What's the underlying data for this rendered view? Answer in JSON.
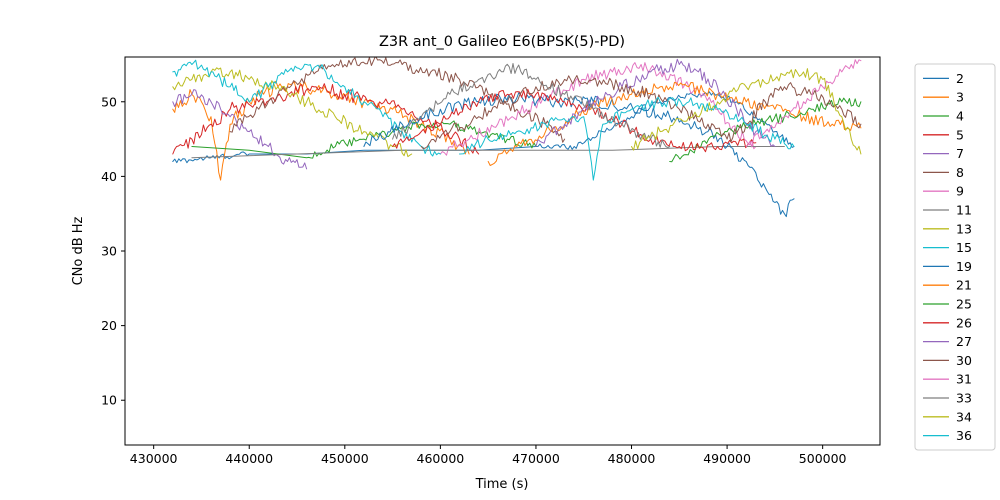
{
  "chart_data": {
    "type": "line",
    "title": "Z3R ant_0 Galileo E6(BPSK(5)-PD)",
    "xlabel": "Time (s)",
    "ylabel": "CNo dB Hz",
    "xlim": [
      427000,
      506000
    ],
    "ylim": [
      4,
      56
    ],
    "xticks": [
      430000,
      440000,
      450000,
      460000,
      470000,
      480000,
      490000,
      500000
    ],
    "yticks": [
      10,
      20,
      30,
      40,
      50
    ],
    "grid": false,
    "legend_position": "right-outside",
    "series": [
      {
        "name": "2",
        "color": "#1f77b4",
        "noise": 0.4,
        "points": [
          [
            432000,
            42
          ],
          [
            436000,
            42.5
          ],
          [
            440000,
            43
          ],
          [
            446000,
            43
          ],
          [
            452000,
            43.5
          ],
          [
            458000,
            43.5
          ],
          [
            464000,
            43.5
          ],
          [
            470000,
            44
          ],
          [
            474000,
            44
          ],
          [
            477000,
            46
          ],
          [
            480000,
            48
          ],
          [
            483000,
            50
          ],
          [
            486000,
            51
          ],
          [
            489000,
            51
          ],
          [
            491000,
            50
          ],
          [
            493000,
            48
          ],
          [
            495000,
            46
          ],
          [
            497000,
            44
          ]
        ]
      },
      {
        "name": "3",
        "color": "#ff7f0e",
        "noise": 0.9,
        "points": [
          [
            432000,
            49
          ],
          [
            434000,
            51
          ],
          [
            436000,
            48
          ],
          [
            437000,
            39.5
          ],
          [
            438000,
            47
          ],
          [
            440000,
            50
          ],
          [
            443000,
            52
          ],
          [
            446000,
            52
          ],
          [
            449000,
            51
          ],
          [
            452000,
            50
          ],
          [
            455000,
            49
          ],
          [
            458000,
            47
          ],
          [
            461000,
            45
          ],
          [
            463000,
            43
          ]
        ]
      },
      {
        "name": "4",
        "color": "#2ca02c",
        "noise": 0.6,
        "points": [
          [
            434000,
            44
          ],
          [
            440000,
            43.5
          ],
          [
            446000,
            42.5
          ],
          [
            449000,
            44
          ],
          [
            452000,
            45
          ],
          [
            455000,
            46
          ],
          [
            458000,
            47
          ],
          [
            461000,
            47
          ],
          [
            464000,
            46
          ],
          [
            467000,
            45
          ],
          [
            470000,
            44
          ]
        ]
      },
      {
        "name": "5",
        "color": "#d62728",
        "noise": 0.9,
        "points": [
          [
            432000,
            43
          ],
          [
            434000,
            45
          ],
          [
            436000,
            47
          ],
          [
            438000,
            49
          ],
          [
            441000,
            50
          ],
          [
            444000,
            51
          ],
          [
            447000,
            52
          ],
          [
            450000,
            51
          ],
          [
            453000,
            50
          ],
          [
            456000,
            49
          ],
          [
            459000,
            47
          ],
          [
            462000,
            45
          ],
          [
            464000,
            43
          ]
        ]
      },
      {
        "name": "7",
        "color": "#9467bd",
        "noise": 0.8,
        "points": [
          [
            432000,
            50
          ],
          [
            434000,
            51
          ],
          [
            436000,
            50
          ],
          [
            438000,
            48
          ],
          [
            440000,
            46
          ],
          [
            442000,
            44
          ],
          [
            444000,
            42
          ],
          [
            446000,
            41
          ]
        ]
      },
      {
        "name": "8",
        "color": "#8c564b",
        "noise": 0.8,
        "points": [
          [
            438000,
            46
          ],
          [
            441000,
            49
          ],
          [
            444000,
            52
          ],
          [
            447000,
            54
          ],
          [
            450000,
            55
          ],
          [
            453000,
            55.5
          ],
          [
            456000,
            55
          ],
          [
            459000,
            54
          ],
          [
            462000,
            53
          ],
          [
            465000,
            51
          ],
          [
            468000,
            49
          ],
          [
            471000,
            47
          ],
          [
            473000,
            45
          ]
        ]
      },
      {
        "name": "9",
        "color": "#e377c2",
        "noise": 0.8,
        "points": [
          [
            460000,
            43
          ],
          [
            463000,
            45
          ],
          [
            466000,
            47
          ],
          [
            469000,
            49
          ],
          [
            472000,
            51
          ],
          [
            475000,
            53
          ],
          [
            478000,
            54
          ],
          [
            481000,
            55
          ],
          [
            483000,
            54
          ],
          [
            486000,
            52
          ],
          [
            489000,
            49
          ],
          [
            491000,
            46
          ],
          [
            493000,
            44
          ]
        ]
      },
      {
        "name": "11",
        "color": "#7f7f7f",
        "noise": 0.2,
        "points": [
          [
            434000,
            42.5
          ],
          [
            445000,
            43
          ],
          [
            456000,
            43.5
          ],
          [
            467000,
            43.5
          ],
          [
            478000,
            43.5
          ],
          [
            489000,
            44
          ],
          [
            496000,
            44
          ]
        ]
      },
      {
        "name": "13",
        "color": "#bcbd22",
        "noise": 0.8,
        "points": [
          [
            432000,
            52
          ],
          [
            434000,
            53
          ],
          [
            436000,
            54
          ],
          [
            438000,
            54
          ],
          [
            440000,
            53
          ],
          [
            443000,
            52
          ],
          [
            446000,
            50
          ],
          [
            449000,
            48
          ],
          [
            452000,
            46
          ],
          [
            455000,
            44
          ],
          [
            457000,
            43
          ]
        ]
      },
      {
        "name": "15",
        "color": "#17becf",
        "noise": 0.8,
        "points": [
          [
            432000,
            54
          ],
          [
            434000,
            55
          ],
          [
            436000,
            54
          ],
          [
            438000,
            52
          ],
          [
            440000,
            50
          ],
          [
            442000,
            52
          ],
          [
            444000,
            54
          ],
          [
            446000,
            55
          ],
          [
            448000,
            54
          ],
          [
            450000,
            52
          ],
          [
            452000,
            50
          ],
          [
            454000,
            48
          ],
          [
            456000,
            46
          ],
          [
            458000,
            44
          ],
          [
            460000,
            43
          ]
        ]
      },
      {
        "name": "19",
        "color": "#1f77b4",
        "noise": 0.8,
        "points": [
          [
            452000,
            44
          ],
          [
            456000,
            47
          ],
          [
            460000,
            49
          ],
          [
            464000,
            50
          ],
          [
            468000,
            50.5
          ],
          [
            472000,
            50
          ],
          [
            476000,
            50
          ],
          [
            481000,
            49
          ],
          [
            484000,
            48
          ],
          [
            486000,
            47
          ],
          [
            488000,
            46
          ],
          [
            490000,
            44
          ],
          [
            492000,
            42
          ],
          [
            493000,
            40.5
          ],
          [
            494000,
            38.5
          ],
          [
            495000,
            36.5
          ],
          [
            496000,
            35
          ],
          [
            497000,
            37
          ]
        ]
      },
      {
        "name": "21",
        "color": "#ff7f0e",
        "noise": 0.8,
        "points": [
          [
            465000,
            42
          ],
          [
            468000,
            44
          ],
          [
            471000,
            46
          ],
          [
            474000,
            48
          ],
          [
            477000,
            50
          ],
          [
            480000,
            51
          ],
          [
            483000,
            52
          ],
          [
            486000,
            52
          ],
          [
            489000,
            51
          ],
          [
            492000,
            50
          ],
          [
            495000,
            49
          ],
          [
            498000,
            48
          ],
          [
            501000,
            47
          ],
          [
            504000,
            46.5
          ]
        ]
      },
      {
        "name": "25",
        "color": "#2ca02c",
        "noise": 0.7,
        "points": [
          [
            484000,
            42
          ],
          [
            487000,
            44
          ],
          [
            490000,
            46
          ],
          [
            493000,
            47
          ],
          [
            496000,
            48
          ],
          [
            499000,
            49
          ],
          [
            502000,
            50
          ],
          [
            504000,
            50
          ]
        ]
      },
      {
        "name": "26",
        "color": "#d62728",
        "noise": 0.7,
        "points": [
          [
            455000,
            44
          ],
          [
            458000,
            46
          ],
          [
            461000,
            48
          ],
          [
            464000,
            50
          ],
          [
            467000,
            51
          ],
          [
            470000,
            51
          ],
          [
            473000,
            50
          ],
          [
            476000,
            49
          ],
          [
            479000,
            47
          ],
          [
            482000,
            45
          ],
          [
            485000,
            44
          ],
          [
            489000,
            44
          ],
          [
            493000,
            44.5
          ]
        ]
      },
      {
        "name": "27",
        "color": "#9467bd",
        "noise": 0.8,
        "points": [
          [
            470000,
            44
          ],
          [
            473000,
            47
          ],
          [
            476000,
            50
          ],
          [
            479000,
            52
          ],
          [
            482000,
            54
          ],
          [
            485000,
            55
          ],
          [
            487000,
            54
          ],
          [
            489000,
            52
          ],
          [
            491000,
            49
          ],
          [
            493000,
            46
          ],
          [
            495000,
            44
          ]
        ]
      },
      {
        "name": "30",
        "color": "#8c564b",
        "noise": 0.8,
        "points": [
          [
            458000,
            44
          ],
          [
            461000,
            46
          ],
          [
            464000,
            48
          ],
          [
            467000,
            50
          ],
          [
            470000,
            52
          ],
          [
            473000,
            53
          ],
          [
            476000,
            53
          ],
          [
            479000,
            52
          ],
          [
            482000,
            51
          ],
          [
            485000,
            49
          ],
          [
            488000,
            47
          ],
          [
            490000,
            45
          ],
          [
            492000,
            47
          ],
          [
            494000,
            50
          ],
          [
            496000,
            52
          ],
          [
            499000,
            51
          ],
          [
            502000,
            49
          ],
          [
            504000,
            47
          ]
        ]
      },
      {
        "name": "31",
        "color": "#e377c2",
        "noise": 0.7,
        "points": [
          [
            492000,
            44
          ],
          [
            494000,
            46
          ],
          [
            496000,
            48
          ],
          [
            498000,
            50
          ],
          [
            500000,
            52
          ],
          [
            502000,
            54
          ],
          [
            503000,
            55
          ],
          [
            504000,
            55.5
          ]
        ]
      },
      {
        "name": "33",
        "color": "#7f7f7f",
        "noise": 0.8,
        "points": [
          [
            455000,
            45
          ],
          [
            458000,
            48
          ],
          [
            461000,
            51
          ],
          [
            464000,
            53
          ],
          [
            466000,
            54
          ],
          [
            468000,
            54.5
          ],
          [
            470000,
            53
          ],
          [
            473000,
            51
          ],
          [
            476000,
            49
          ],
          [
            479000,
            47
          ],
          [
            482000,
            45
          ],
          [
            484000,
            44
          ]
        ]
      },
      {
        "name": "34",
        "color": "#bcbd22",
        "noise": 0.8,
        "points": [
          [
            480000,
            44
          ],
          [
            483000,
            46
          ],
          [
            486000,
            48
          ],
          [
            489000,
            50
          ],
          [
            492000,
            52
          ],
          [
            495000,
            53
          ],
          [
            498000,
            54
          ],
          [
            500000,
            53
          ],
          [
            502000,
            48
          ],
          [
            503000,
            45
          ],
          [
            504000,
            43
          ]
        ]
      },
      {
        "name": "36",
        "color": "#17becf",
        "noise": 0.7,
        "points": [
          [
            462000,
            43
          ],
          [
            465000,
            45
          ],
          [
            468000,
            46
          ],
          [
            471000,
            47
          ],
          [
            474000,
            48
          ],
          [
            475000,
            48
          ],
          [
            476000,
            39.5
          ],
          [
            477000,
            47
          ],
          [
            480000,
            49
          ],
          [
            483000,
            50
          ],
          [
            486000,
            50
          ],
          [
            489000,
            49
          ],
          [
            492000,
            47
          ],
          [
            495000,
            45
          ],
          [
            497000,
            44
          ]
        ]
      }
    ],
    "legend_labels": [
      "2",
      "3",
      "4",
      "5",
      "7",
      "8",
      "9",
      "11",
      "13",
      "15",
      "19",
      "21",
      "25",
      "26",
      "27",
      "30",
      "31",
      "33",
      "34",
      "36"
    ]
  }
}
